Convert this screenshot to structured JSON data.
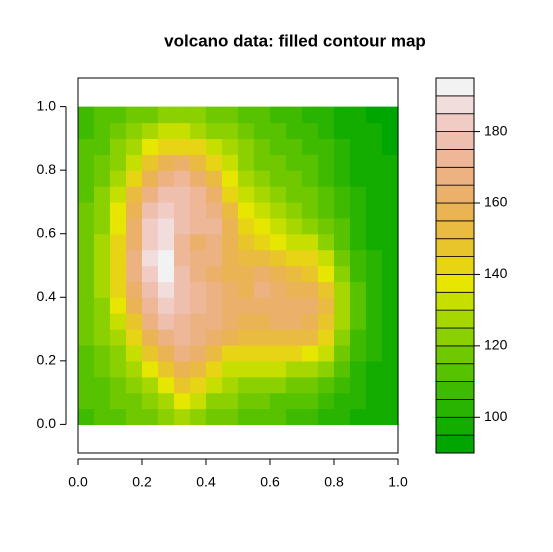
{
  "chart_data": {
    "type": "filled_contour",
    "title": "volcano data: filled contour map",
    "palette": "terrain",
    "xlim": [
      0,
      1
    ],
    "ylim": [
      -0.09,
      1.09
    ],
    "xticks": [
      {
        "value": 0,
        "label": "0.0"
      },
      0.2,
      0.4,
      0.6,
      0.8,
      {
        "value": 1,
        "label": "1.0"
      }
    ],
    "yticks": [
      {
        "value": 0,
        "label": "0.0"
      },
      0.2,
      0.4,
      0.6,
      0.8,
      {
        "value": 1,
        "label": "1.0"
      }
    ],
    "x": [
      0.025,
      0.075,
      0.125,
      0.175,
      0.225,
      0.275,
      0.325,
      0.375,
      0.425,
      0.475,
      0.525,
      0.575,
      0.625,
      0.675,
      0.725,
      0.775,
      0.825,
      0.875,
      0.925,
      0.975
    ],
    "y": [
      0.025,
      0.075,
      0.125,
      0.175,
      0.225,
      0.275,
      0.325,
      0.375,
      0.425,
      0.475,
      0.525,
      0.575,
      0.625,
      0.675,
      0.725,
      0.775,
      0.825,
      0.875,
      0.925,
      0.975
    ],
    "z": [
      [
        108,
        110,
        112,
        115,
        118,
        122,
        125,
        122,
        118,
        115,
        113,
        112,
        110,
        108,
        106,
        104,
        100,
        98,
        96,
        95
      ],
      [
        110,
        112,
        115,
        118,
        122,
        128,
        135,
        130,
        124,
        120,
        118,
        116,
        114,
        112,
        110,
        108,
        104,
        100,
        97,
        96
      ],
      [
        112,
        114,
        118,
        122,
        128,
        135,
        145,
        140,
        132,
        126,
        124,
        122,
        120,
        118,
        116,
        114,
        108,
        102,
        98,
        96
      ],
      [
        113,
        116,
        120,
        126,
        135,
        145,
        155,
        150,
        142,
        134,
        130,
        130,
        130,
        128,
        126,
        122,
        112,
        104,
        99,
        97
      ],
      [
        114,
        118,
        124,
        132,
        145,
        158,
        165,
        160,
        152,
        144,
        142,
        142,
        142,
        140,
        138,
        132,
        118,
        106,
        100,
        97
      ],
      [
        115,
        120,
        128,
        140,
        155,
        168,
        170,
        166,
        160,
        155,
        150,
        150,
        152,
        152,
        150,
        142,
        122,
        108,
        101,
        98
      ],
      [
        116,
        122,
        132,
        148,
        165,
        175,
        172,
        168,
        165,
        160,
        158,
        158,
        160,
        160,
        158,
        148,
        126,
        110,
        102,
        98
      ],
      [
        117,
        124,
        136,
        155,
        172,
        180,
        175,
        170,
        166,
        162,
        160,
        162,
        160,
        160,
        160,
        150,
        128,
        111,
        103,
        99
      ],
      [
        118,
        125,
        140,
        160,
        178,
        185,
        176,
        170,
        165,
        160,
        158,
        165,
        160,
        158,
        155,
        145,
        125,
        110,
        102,
        99
      ],
      [
        118,
        126,
        142,
        165,
        183,
        190,
        178,
        168,
        162,
        158,
        156,
        162,
        156,
        152,
        148,
        138,
        122,
        108,
        101,
        98
      ],
      [
        118,
        126,
        142,
        166,
        185,
        190,
        172,
        165,
        165,
        156,
        150,
        152,
        148,
        144,
        140,
        130,
        118,
        106,
        100,
        97
      ],
      [
        117,
        125,
        140,
        164,
        184,
        188,
        170,
        162,
        168,
        155,
        145,
        142,
        138,
        134,
        130,
        122,
        114,
        104,
        99,
        96
      ],
      [
        116,
        124,
        138,
        160,
        180,
        185,
        176,
        172,
        170,
        155,
        142,
        136,
        132,
        128,
        124,
        118,
        110,
        102,
        98,
        96
      ],
      [
        115,
        122,
        135,
        155,
        175,
        180,
        178,
        174,
        168,
        150,
        138,
        130,
        126,
        122,
        118,
        114,
        108,
        101,
        97,
        95
      ],
      [
        114,
        120,
        132,
        150,
        168,
        176,
        178,
        172,
        160,
        142,
        132,
        126,
        122,
        118,
        115,
        112,
        106,
        100,
        97,
        95
      ],
      [
        113,
        118,
        128,
        142,
        158,
        168,
        172,
        164,
        150,
        136,
        128,
        122,
        118,
        115,
        112,
        109,
        104,
        99,
        96,
        95
      ],
      [
        112,
        116,
        124,
        134,
        146,
        156,
        160,
        152,
        140,
        130,
        124,
        119,
        116,
        113,
        110,
        107,
        102,
        98,
        96,
        95
      ],
      [
        110,
        114,
        120,
        127,
        136,
        142,
        144,
        140,
        132,
        125,
        120,
        116,
        113,
        110,
        108,
        105,
        100,
        97,
        95,
        94
      ],
      [
        108,
        112,
        116,
        120,
        126,
        130,
        130,
        128,
        124,
        120,
        116,
        113,
        110,
        108,
        106,
        103,
        99,
        96,
        95,
        94
      ],
      [
        106,
        110,
        113,
        116,
        119,
        122,
        122,
        121,
        119,
        116,
        113,
        111,
        108,
        106,
        104,
        101,
        98,
        96,
        94,
        94
      ]
    ],
    "colorbar": {
      "levels": [
        90,
        95,
        100,
        105,
        110,
        115,
        120,
        125,
        130,
        135,
        140,
        145,
        150,
        155,
        160,
        165,
        170,
        175,
        180,
        185,
        190,
        195
      ],
      "ticks": [
        100,
        120,
        140,
        160,
        180
      ]
    }
  }
}
